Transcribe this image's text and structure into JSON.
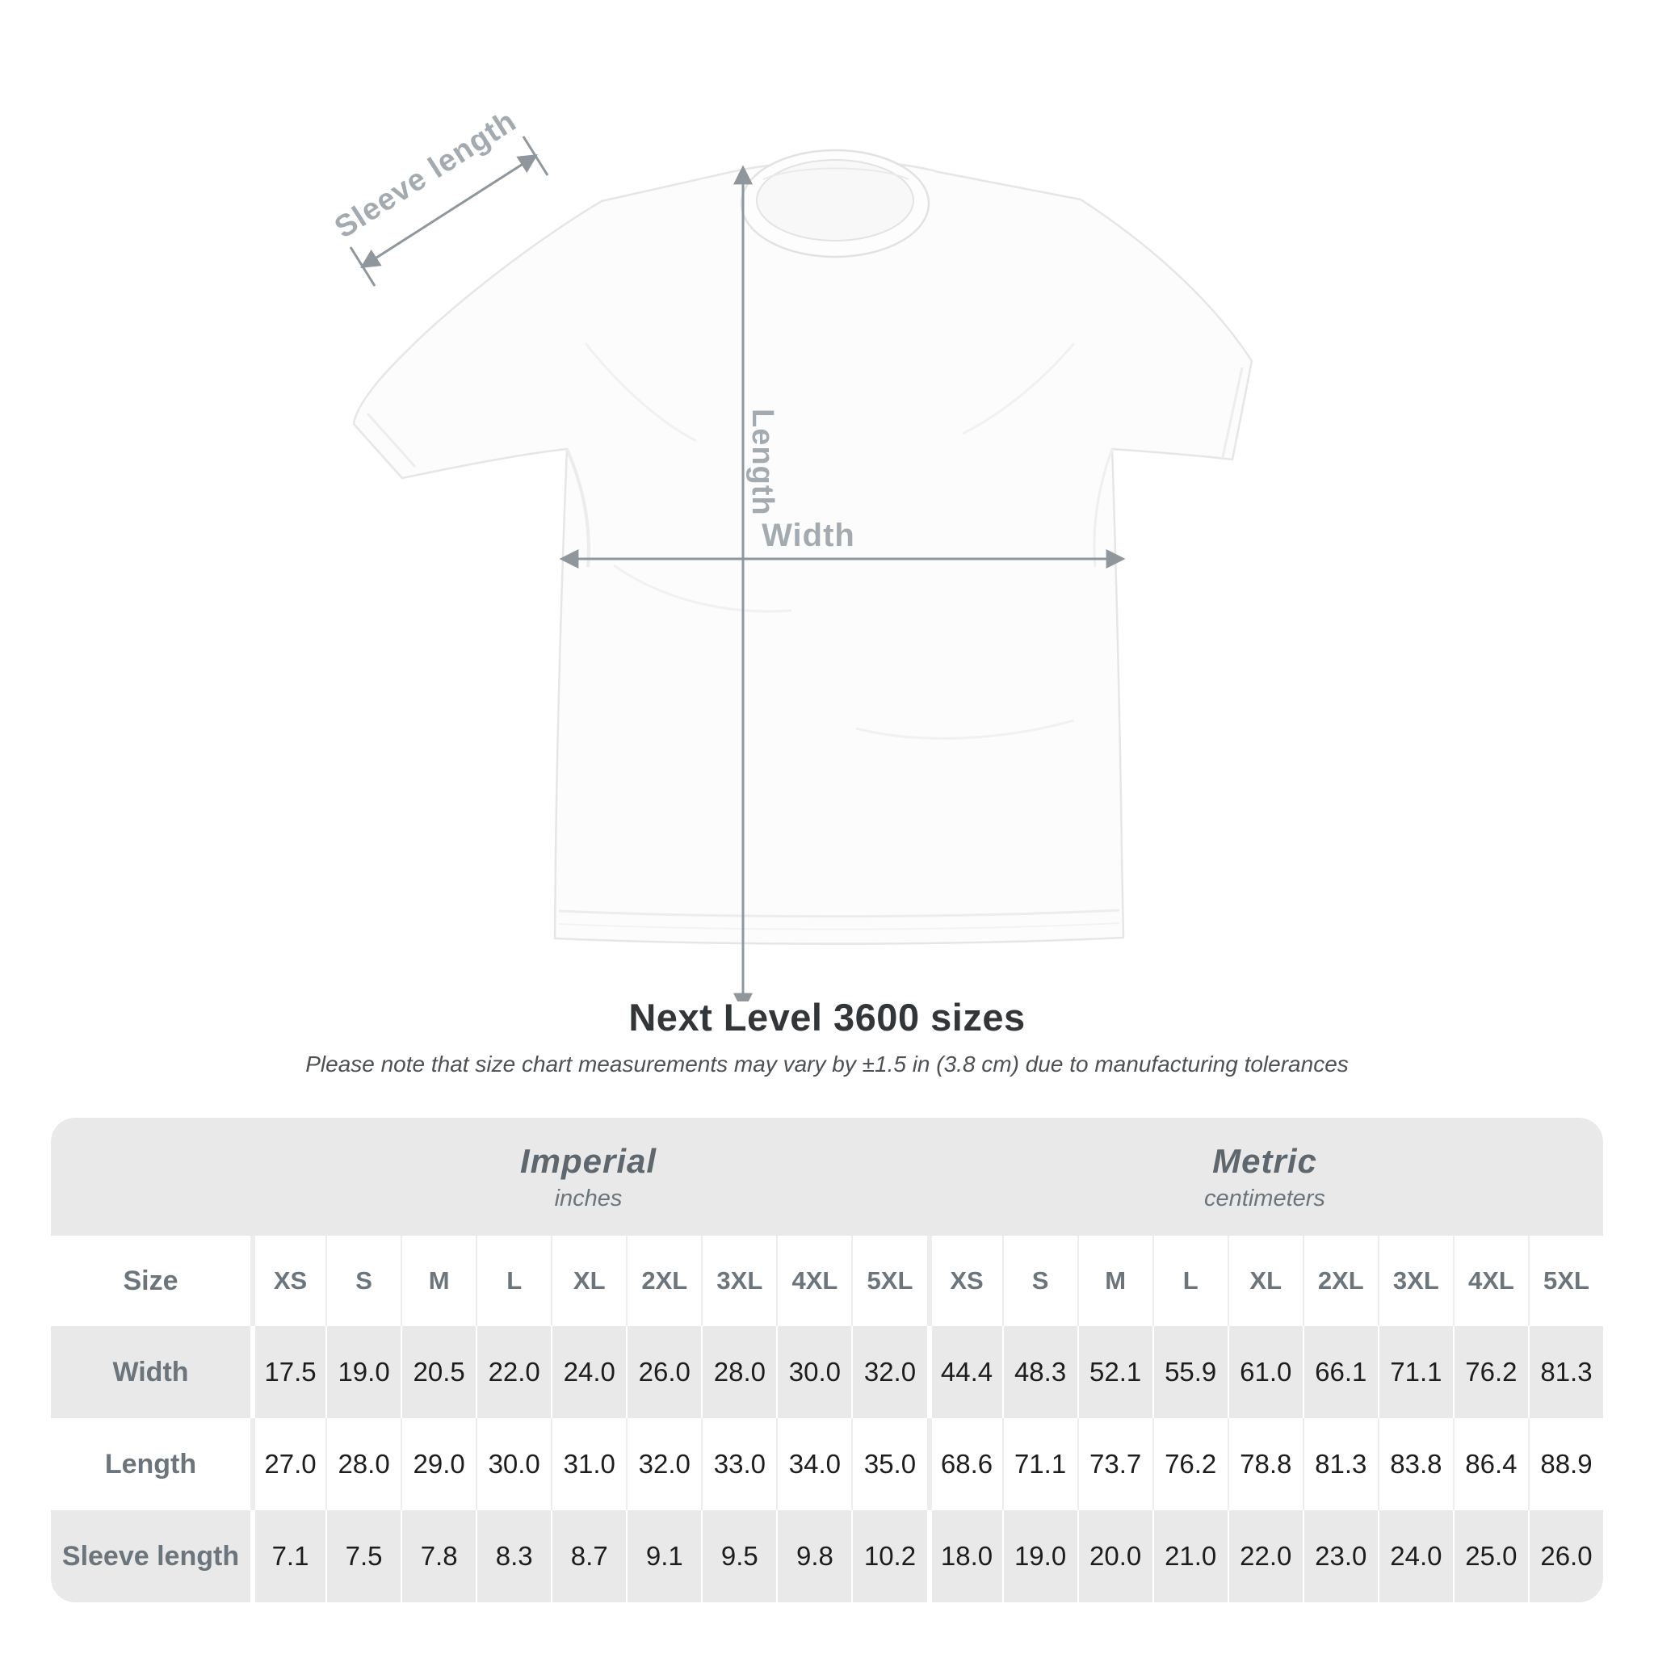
{
  "page": {
    "background": "#ffffff"
  },
  "shirt_diagram": {
    "sleeve_length_label": "Sleeve length",
    "length_label": "Length",
    "width_label": "Width",
    "annotation_color": "#8f979c",
    "label_color": "#a4abb0"
  },
  "header": {
    "title": "Next Level 3600 sizes",
    "subtitle": "Please note that size chart measurements may vary by ±1.5 in (3.8 cm) due to manufacturing tolerances"
  },
  "size_table": {
    "background": "#e9e9e9",
    "size_column_header": "Size",
    "groups": [
      {
        "label": "Imperial",
        "unit": "inches"
      },
      {
        "label": "Metric",
        "unit": "centimeters"
      }
    ],
    "sizes": [
      "XS",
      "S",
      "M",
      "L",
      "XL",
      "2XL",
      "3XL",
      "4XL",
      "5XL"
    ],
    "rows": [
      {
        "label": "Width",
        "imperial": [
          "17.5",
          "19.0",
          "20.5",
          "22.0",
          "24.0",
          "26.0",
          "28.0",
          "30.0",
          "32.0"
        ],
        "metric": [
          "44.4",
          "48.3",
          "52.1",
          "55.9",
          "61.0",
          "66.1",
          "71.1",
          "76.2",
          "81.3"
        ]
      },
      {
        "label": "Length",
        "imperial": [
          "27.0",
          "28.0",
          "29.0",
          "30.0",
          "31.0",
          "32.0",
          "33.0",
          "34.0",
          "35.0"
        ],
        "metric": [
          "68.6",
          "71.1",
          "73.7",
          "76.2",
          "78.8",
          "81.3",
          "83.8",
          "86.4",
          "88.9"
        ]
      },
      {
        "label": "Sleeve length",
        "imperial": [
          "7.1",
          "7.5",
          "7.8",
          "8.3",
          "8.7",
          "9.1",
          "9.5",
          "9.8",
          "10.2"
        ],
        "metric": [
          "18.0",
          "19.0",
          "20.0",
          "21.0",
          "22.0",
          "23.0",
          "24.0",
          "25.0",
          "26.0"
        ]
      }
    ]
  },
  "chart_data": {
    "type": "table",
    "title": "Next Level 3600 sizes",
    "note": "Please note that size chart measurements may vary by ±1.5 in (3.8 cm) due to manufacturing tolerances",
    "column_groups": [
      "Imperial (inches)",
      "Metric (centimeters)"
    ],
    "categories": [
      "XS",
      "S",
      "M",
      "L",
      "XL",
      "2XL",
      "3XL",
      "4XL",
      "5XL"
    ],
    "series": [
      {
        "name": "Width (in)",
        "values": [
          17.5,
          19.0,
          20.5,
          22.0,
          24.0,
          26.0,
          28.0,
          30.0,
          32.0
        ]
      },
      {
        "name": "Length (in)",
        "values": [
          27.0,
          28.0,
          29.0,
          30.0,
          31.0,
          32.0,
          33.0,
          34.0,
          35.0
        ]
      },
      {
        "name": "Sleeve length (in)",
        "values": [
          7.1,
          7.5,
          7.8,
          8.3,
          8.7,
          9.1,
          9.5,
          9.8,
          10.2
        ]
      },
      {
        "name": "Width (cm)",
        "values": [
          44.4,
          48.3,
          52.1,
          55.9,
          61.0,
          66.1,
          71.1,
          76.2,
          81.3
        ]
      },
      {
        "name": "Length (cm)",
        "values": [
          68.6,
          71.1,
          73.7,
          76.2,
          78.8,
          81.3,
          83.8,
          86.4,
          88.9
        ]
      },
      {
        "name": "Sleeve length (cm)",
        "values": [
          18.0,
          19.0,
          20.0,
          21.0,
          22.0,
          23.0,
          24.0,
          25.0,
          26.0
        ]
      }
    ]
  }
}
